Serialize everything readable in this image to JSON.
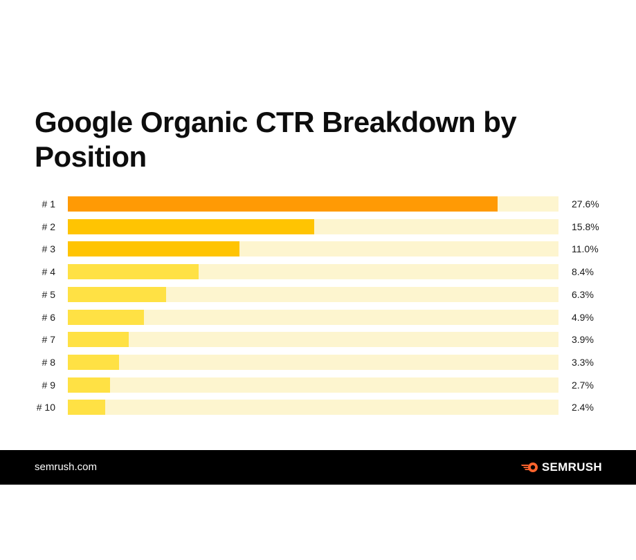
{
  "colors": {
    "track": "#fdf5cf",
    "shades": [
      "#ff9a05",
      "#ffc402",
      "#ffc402",
      "#ffe144",
      "#ffe144",
      "#ffe144",
      "#ffe144",
      "#ffe144",
      "#ffe144",
      "#ffe144"
    ],
    "footer_bg": "#000000",
    "logo_accent": "#ff642d"
  },
  "chart_data": {
    "type": "bar",
    "orientation": "horizontal",
    "title": "Google Organic CTR Breakdown by Position",
    "categories": [
      "# 1",
      "# 2",
      "# 3",
      "# 4",
      "# 5",
      "# 6",
      "# 7",
      "# 8",
      "# 9",
      "# 10"
    ],
    "values": [
      27.6,
      15.8,
      11.0,
      8.4,
      6.3,
      4.9,
      3.9,
      3.3,
      2.7,
      2.4
    ],
    "value_labels": [
      "27.6%",
      "15.8%",
      "11.0%",
      "8.4%",
      "6.3%",
      "4.9%",
      "3.9%",
      "3.3%",
      "2.7%",
      "2.4%"
    ],
    "xlim": [
      0,
      31.5
    ],
    "unit": "%",
    "grid": false,
    "legend": "none"
  },
  "footer": {
    "site": "semrush.com",
    "logo_text": "SEMRUSH",
    "logo_icon": "semrush-fire-icon"
  }
}
